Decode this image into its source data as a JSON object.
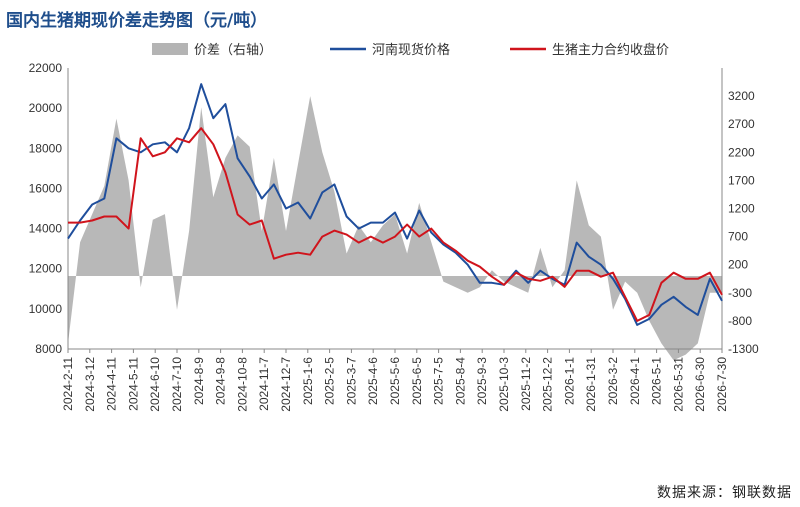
{
  "title": "国内生猪期现价差走势图（元/吨）",
  "source": "数据来源：钢联数据",
  "chart_data": {
    "type": "line",
    "left_axis": {
      "min": 8000,
      "max": 22000,
      "ticks": [
        8000,
        10000,
        12000,
        14000,
        16000,
        18000,
        20000,
        22000
      ]
    },
    "right_axis": {
      "min": -1300,
      "max": 3700,
      "ticks": [
        -1300,
        -800,
        -300,
        200,
        700,
        1200,
        1700,
        2200,
        2700,
        3200
      ]
    },
    "x_labels": [
      "2024-2-11",
      "2024-3-12",
      "2024-4-11",
      "2024-5-11",
      "2024-6-10",
      "2024-7-10",
      "2024-8-9",
      "2024-9-8",
      "2024-10-8",
      "2024-11-7",
      "2024-12-7",
      "2025-1-6",
      "2025-2-5",
      "2025-3-7",
      "2025-4-6",
      "2025-5-6",
      "2025-6-5",
      "2025-7-5",
      "2025-8-4",
      "2025-9-3",
      "2025-10-3",
      "2025-11-2",
      "2025-12-2",
      "2026-1-1",
      "2026-1-31",
      "2026-3-2",
      "2026-4-1",
      "2026-5-1",
      "2026-5-31",
      "2026-6-30",
      "2026-7-30"
    ],
    "legend": [
      {
        "name": "价差（右轴）",
        "color": "#b4b4b4",
        "kind": "area"
      },
      {
        "name": "河南现货价格",
        "color": "#1f4e9c",
        "kind": "line"
      },
      {
        "name": "生猪主力合约收盘价",
        "color": "#d0141c",
        "kind": "line"
      }
    ],
    "series": [
      {
        "name": "河南现货价格",
        "axis": "left",
        "color": "#1f4e9c",
        "values": [
          13500,
          14400,
          15200,
          15500,
          18500,
          18000,
          17800,
          18200,
          18300,
          17800,
          19000,
          21200,
          19500,
          20200,
          17500,
          16600,
          15500,
          16200,
          15000,
          15300,
          14500,
          15800,
          16200,
          14600,
          14000,
          14300,
          14300,
          14800,
          13500,
          14900,
          13800,
          13200,
          12800,
          12200,
          11300,
          11300,
          11200,
          11900,
          11300,
          11900,
          11500,
          11200,
          13300,
          12600,
          12200,
          11500,
          10500,
          9200,
          9500,
          10200,
          10600,
          10100,
          9700,
          11500,
          10400
        ]
      },
      {
        "name": "生猪主力合约收盘价",
        "axis": "left",
        "color": "#d0141c",
        "values": [
          14300,
          14300,
          14400,
          14600,
          14600,
          14000,
          18500,
          17600,
          17800,
          18500,
          18300,
          19000,
          18200,
          16800,
          14700,
          14200,
          14400,
          12500,
          12700,
          12800,
          12700,
          13600,
          13900,
          13700,
          13300,
          13600,
          13300,
          13600,
          14200,
          13600,
          14000,
          13300,
          12900,
          12400,
          12100,
          11600,
          11200,
          11800,
          11500,
          11400,
          11600,
          11100,
          11900,
          11900,
          11600,
          11800,
          10600,
          9400,
          9700,
          11300,
          11800,
          11500,
          11500,
          11800,
          10700
        ]
      },
      {
        "name": "价差（右轴）",
        "axis": "right",
        "color": "#b4b4b4",
        "values": [
          -1200,
          600,
          1100,
          1600,
          2800,
          1700,
          -200,
          1000,
          1100,
          -600,
          800,
          3000,
          1400,
          2100,
          2500,
          2300,
          800,
          2100,
          800,
          2000,
          3200,
          2200,
          1500,
          400,
          900,
          600,
          900,
          1100,
          400,
          1300,
          600,
          -100,
          -200,
          -300,
          -200,
          100,
          -100,
          -200,
          -300,
          500,
          -200,
          100,
          1700,
          900,
          700,
          -600,
          -100,
          -300,
          -800,
          -1200,
          -1500,
          -1400,
          -1200,
          -300,
          -300
        ]
      }
    ]
  }
}
